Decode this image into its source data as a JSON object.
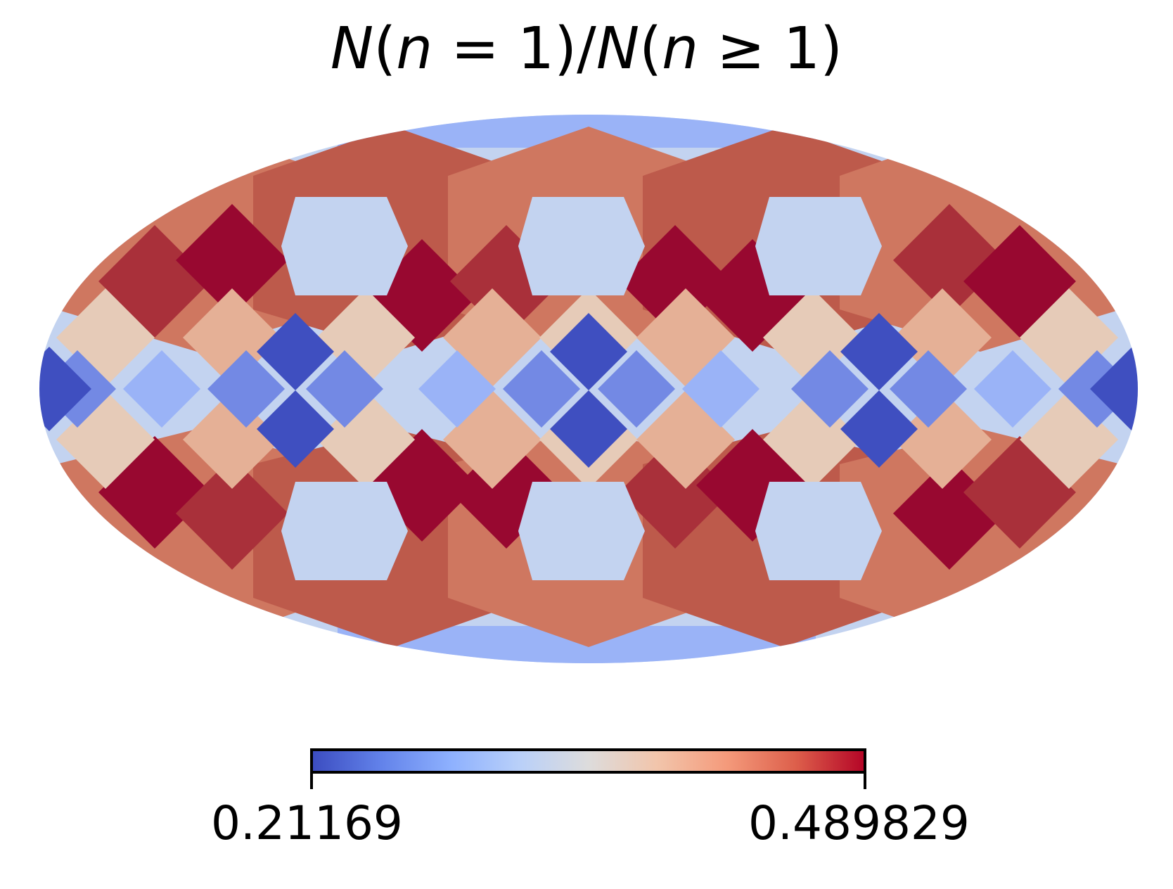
{
  "chart_data": {
    "type": "heatmap",
    "projection": "mollweide",
    "title": "N(n = 1)/N(n ≥ 1)",
    "colormap": "coolwarm",
    "colorbar": {
      "min_label": "0.21169",
      "max_label": "0.489829",
      "range": [
        0.21169,
        0.489829
      ],
      "orientation": "horizontal",
      "placement": "bottom"
    },
    "grid": false,
    "palette": {
      "dark_blue": "#3f4fc0",
      "blue": "#7389e4",
      "light_blue": "#9ab3f7",
      "pale_blue": "#c3d3f0",
      "beige": "#e6cbb8",
      "salmon": "#e5b096",
      "peach": "#de9e80",
      "terracotta": "#cf7760",
      "red_brown": "#bd5a4b",
      "brick": "#a9303a",
      "crimson": "#980830"
    }
  }
}
